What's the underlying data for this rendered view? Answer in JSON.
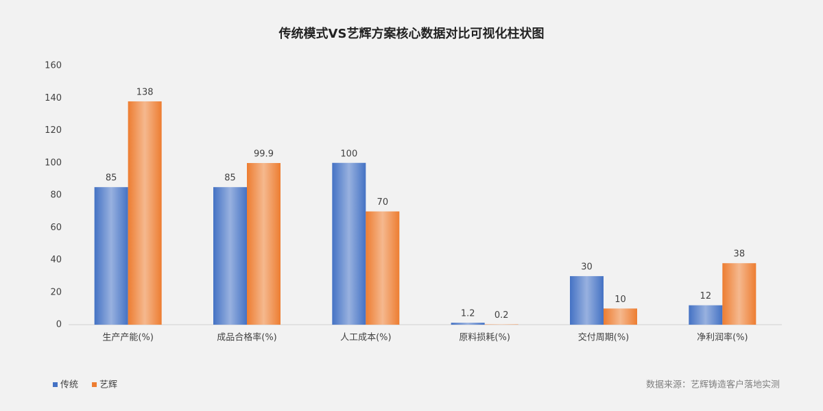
{
  "chart_data": {
    "type": "bar",
    "title": "传统模式VS艺辉方案核心数据对比可视化柱状图",
    "categories": [
      "生产产能(%)",
      "成品合格率(%)",
      "人工成本(%)",
      "原料损耗(%)",
      "交付周期(%)",
      "净利润率(%)"
    ],
    "series": [
      {
        "name": "传统",
        "color": "#4472c4",
        "values": [
          85,
          85,
          100,
          1.2,
          30,
          12
        ]
      },
      {
        "name": "艺辉",
        "color": "#ed7d31",
        "values": [
          138,
          99.9,
          70,
          0.2,
          10,
          38
        ]
      }
    ],
    "ylim": [
      0,
      160
    ],
    "yticks": [
      0,
      20,
      40,
      60,
      80,
      100,
      120,
      140,
      160
    ],
    "grid": false,
    "legend": "bottom-left",
    "source": "数据来源：艺辉铸造客户落地实测"
  }
}
